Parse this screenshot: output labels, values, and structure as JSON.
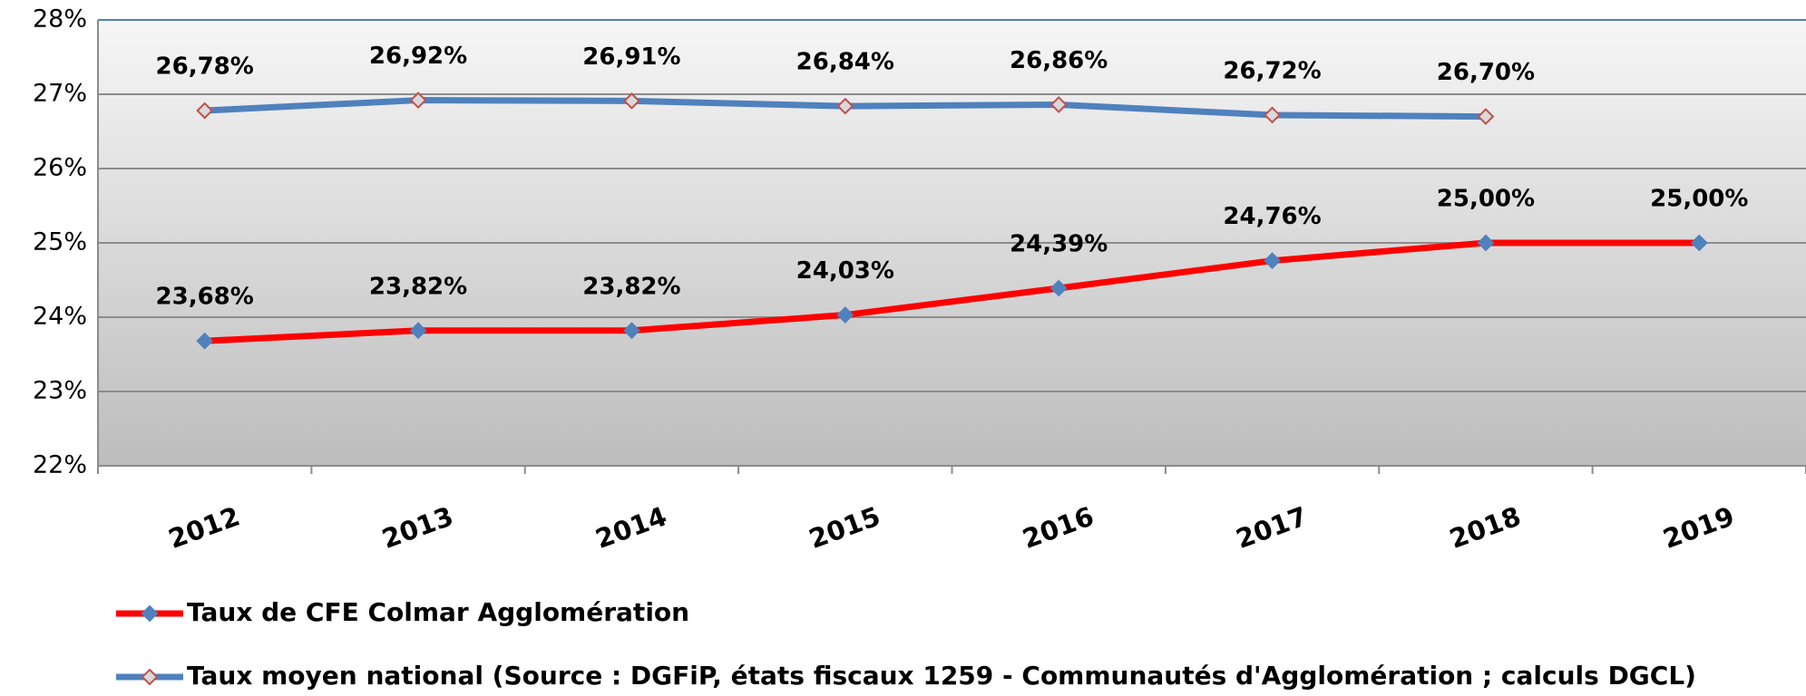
{
  "chart_data": {
    "type": "line",
    "categories": [
      "2012",
      "2013",
      "2014",
      "2015",
      "2016",
      "2017",
      "2018",
      "2019"
    ],
    "series": [
      {
        "name": "Taux de CFE Colmar Agglomération",
        "color": "#ff0000",
        "marker_color": "#4f81bd",
        "values": [
          23.68,
          23.82,
          23.82,
          24.03,
          24.39,
          24.76,
          25.0,
          25.0
        ],
        "value_labels": [
          "23,68%",
          "23,82%",
          "23,82%",
          "24,03%",
          "24,39%",
          "24,76%",
          "25,00%",
          "25,00%"
        ]
      },
      {
        "name": "Taux moyen national (Source : DGFiP, états fiscaux 1259 - Communautés d'Agglomération ; calculs DGCL)",
        "color": "#4f81bd",
        "marker_color": "#c0504d",
        "values": [
          26.78,
          26.92,
          26.91,
          26.84,
          26.86,
          26.72,
          26.7,
          null
        ],
        "value_labels": [
          "26,78%",
          "26,92%",
          "26,91%",
          "26,84%",
          "26,86%",
          "26,72%",
          "26,70%",
          null
        ]
      }
    ],
    "ylim": [
      22,
      28
    ],
    "yticks": [
      {
        "value": 22,
        "label": "22%"
      },
      {
        "value": 23,
        "label": "23%"
      },
      {
        "value": 24,
        "label": "24%"
      },
      {
        "value": 25,
        "label": "25%"
      },
      {
        "value": 26,
        "label": "26%"
      },
      {
        "value": 27,
        "label": "27%"
      },
      {
        "value": 28,
        "label": "28%"
      }
    ],
    "grid": true
  }
}
